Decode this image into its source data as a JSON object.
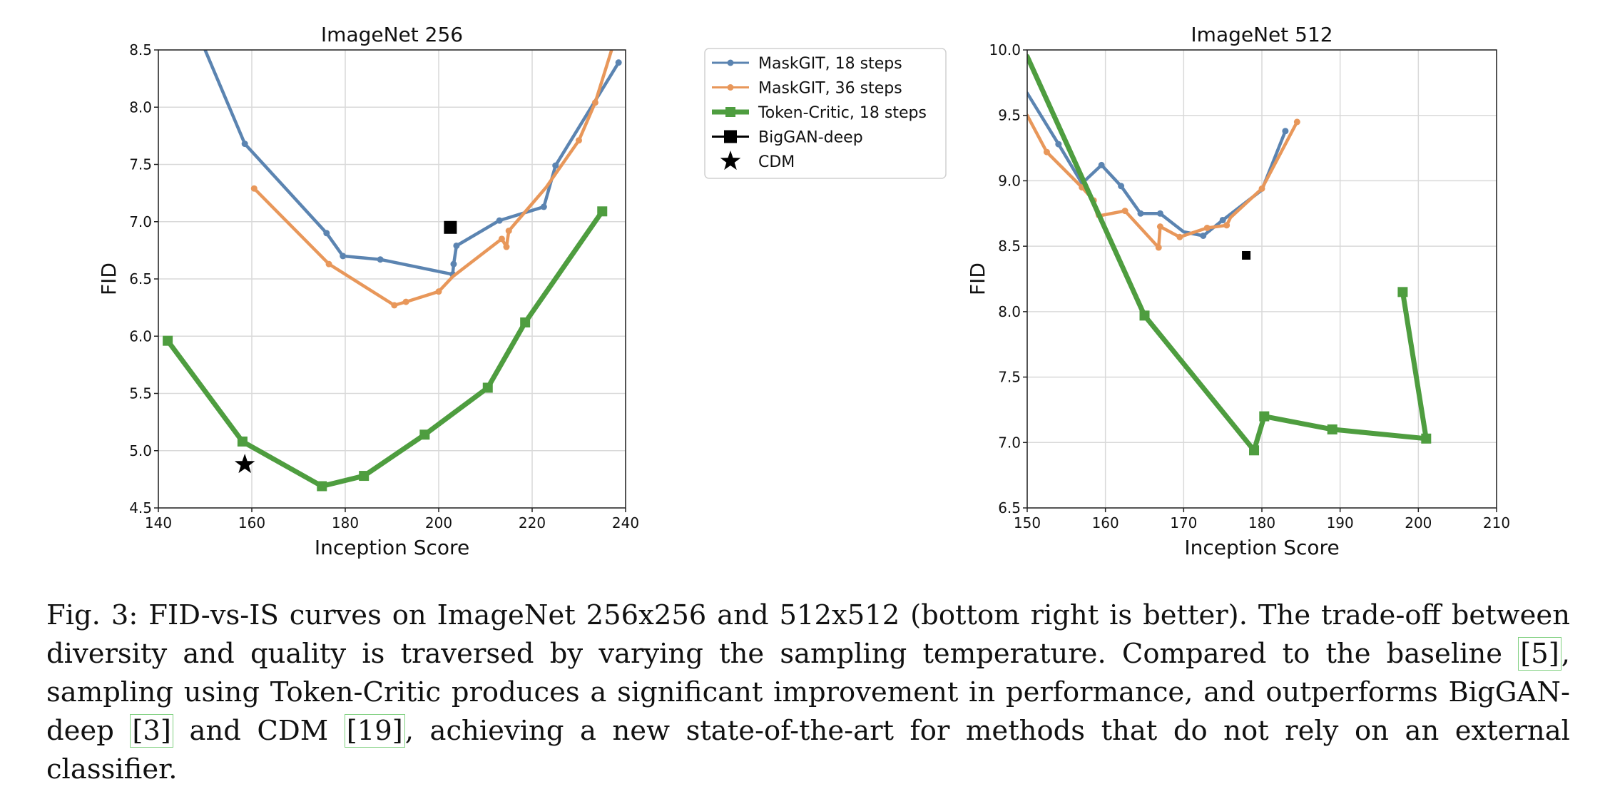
{
  "chart_data": [
    {
      "type": "line",
      "title": "ImageNet 256",
      "xlabel": "Inception Score",
      "ylabel": "FID",
      "xlim": [
        140,
        240
      ],
      "ylim": [
        4.5,
        8.5
      ],
      "xticks": [
        "140",
        "160",
        "180",
        "200",
        "220",
        "240"
      ],
      "yticks": [
        "4.5",
        "5.0",
        "5.5",
        "6.0",
        "6.5",
        "7.0",
        "7.5",
        "8.0",
        "8.5"
      ],
      "grid": true,
      "series": [
        {
          "name": "MaskGIT, 18 steps",
          "color": "#5b84b1",
          "marker": "circle",
          "points": [
            [
              150.0,
              8.5
            ],
            [
              158.5,
              7.68
            ],
            [
              176.0,
              6.9
            ],
            [
              179.5,
              6.7
            ],
            [
              187.5,
              6.67
            ],
            [
              203.0,
              6.54
            ],
            [
              203.2,
              6.63
            ],
            [
              203.8,
              6.79
            ],
            [
              213.0,
              7.01
            ],
            [
              222.5,
              7.13
            ],
            [
              225.0,
              7.49
            ],
            [
              238.5,
              8.39
            ]
          ],
          "marked": [
            false,
            true,
            true,
            true,
            true,
            true,
            true,
            true,
            true,
            true,
            true,
            true
          ]
        },
        {
          "name": "MaskGIT, 36 steps",
          "color": "#e8975a",
          "marker": "circle",
          "points": [
            [
              160.5,
              7.29
            ],
            [
              176.5,
              6.63
            ],
            [
              190.5,
              6.27
            ],
            [
              193.0,
              6.3
            ],
            [
              200.0,
              6.39
            ],
            [
              203.0,
              6.52
            ],
            [
              213.5,
              6.85
            ],
            [
              214.5,
              6.78
            ],
            [
              215.0,
              6.92
            ],
            [
              223.0,
              7.3
            ],
            [
              230.0,
              7.71
            ],
            [
              233.5,
              8.04
            ],
            [
              237.0,
              8.5
            ]
          ],
          "marked": [
            true,
            true,
            true,
            true,
            true,
            false,
            true,
            true,
            true,
            false,
            true,
            true,
            false
          ]
        },
        {
          "name": "Token-Critic, 18 steps",
          "color": "#4e9d3f",
          "marker": "square",
          "points": [
            [
              142.0,
              5.96
            ],
            [
              158.0,
              5.08
            ],
            [
              175.0,
              4.69
            ],
            [
              184.0,
              4.78
            ],
            [
              197.0,
              5.14
            ],
            [
              210.5,
              5.55
            ],
            [
              218.5,
              6.12
            ],
            [
              235.0,
              7.09
            ]
          ],
          "marked": [
            true,
            true,
            true,
            true,
            true,
            true,
            true,
            true
          ]
        }
      ],
      "extra_points": [
        {
          "name": "BigGAN-deep",
          "marker": "square",
          "color": "#000000",
          "x": 202.5,
          "y": 6.95
        },
        {
          "name": "CDM",
          "marker": "star",
          "color": "#000000",
          "x": 158.5,
          "y": 4.88
        }
      ]
    },
    {
      "type": "line",
      "title": "ImageNet 512",
      "xlabel": "Inception Score",
      "ylabel": "FID",
      "xlim": [
        150,
        210
      ],
      "ylim": [
        6.5,
        10.0
      ],
      "xticks": [
        "150",
        "160",
        "170",
        "180",
        "190",
        "200",
        "210"
      ],
      "yticks": [
        "6.5",
        "7.0",
        "7.5",
        "8.0",
        "8.5",
        "9.0",
        "9.5",
        "10.0"
      ],
      "grid": true,
      "series": [
        {
          "name": "MaskGIT, 18 steps",
          "color": "#5b84b1",
          "marker": "circle",
          "points": [
            [
              150.0,
              9.67
            ],
            [
              154.0,
              9.28
            ],
            [
              157.0,
              8.98
            ],
            [
              159.5,
              9.12
            ],
            [
              162.0,
              8.96
            ],
            [
              164.5,
              8.75
            ],
            [
              167.0,
              8.75
            ],
            [
              170.0,
              8.61
            ],
            [
              172.5,
              8.58
            ],
            [
              175.0,
              8.7
            ],
            [
              180.0,
              8.93
            ],
            [
              183.0,
              9.38
            ]
          ],
          "marked": [
            false,
            true,
            false,
            true,
            true,
            true,
            true,
            false,
            true,
            true,
            false,
            true
          ]
        },
        {
          "name": "MaskGIT, 36 steps",
          "color": "#e8975a",
          "marker": "circle",
          "points": [
            [
              150.0,
              9.5
            ],
            [
              152.5,
              9.22
            ],
            [
              157.0,
              8.95
            ],
            [
              158.5,
              8.85
            ],
            [
              159.0,
              8.73
            ],
            [
              162.5,
              8.77
            ],
            [
              166.8,
              8.49
            ],
            [
              167.0,
              8.65
            ],
            [
              169.5,
              8.57
            ],
            [
              173.0,
              8.64
            ],
            [
              175.5,
              8.66
            ],
            [
              176.0,
              8.72
            ],
            [
              180.0,
              8.94
            ],
            [
              184.5,
              9.45
            ]
          ],
          "marked": [
            false,
            true,
            true,
            true,
            false,
            true,
            true,
            true,
            true,
            true,
            true,
            false,
            true,
            true
          ]
        },
        {
          "name": "Token-Critic, 18 steps",
          "color": "#4e9d3f",
          "marker": "square",
          "points": [
            [
              150.0,
              9.95
            ],
            [
              165.0,
              7.97
            ],
            [
              179.0,
              6.94
            ],
            [
              180.3,
              7.2
            ],
            [
              189.0,
              7.1
            ],
            [
              201.0,
              7.03
            ],
            [
              198.0,
              8.15
            ]
          ],
          "marked": [
            false,
            true,
            true,
            true,
            true,
            true,
            true
          ]
        }
      ],
      "extra_points": [
        {
          "name": "BigGAN-deep",
          "marker": "square",
          "color": "#000000",
          "x": 178.0,
          "y": 8.43
        }
      ]
    }
  ],
  "legend": {
    "placement": "between charts, top",
    "items": [
      {
        "label": "MaskGIT, 18 steps",
        "color": "#5b84b1",
        "marker": "circle",
        "line": true
      },
      {
        "label": "MaskGIT, 36 steps",
        "color": "#e8975a",
        "marker": "circle",
        "line": true
      },
      {
        "label": "Token-Critic, 18 steps",
        "color": "#4e9d3f",
        "marker": "square",
        "line": true
      },
      {
        "label": "BigGAN-deep",
        "color": "#000000",
        "marker": "square",
        "line": true
      },
      {
        "label": "CDM",
        "color": "#000000",
        "marker": "star",
        "line": false
      }
    ]
  },
  "caption": {
    "p1": "Fig. 3: FID-vs-IS curves on ImageNet 256x256 and 512x512 (bottom right is better). The trade-off between diversity and quality is traversed by varying the sampling temperature. Compared to the baseline ",
    "c1": "[5]",
    "p2": ", sampling using Token-Critic produces a significant improvement in performance, and outperforms BigGAN-deep ",
    "c2": "[3]",
    "p3": " and CDM ",
    "c3": "[19]",
    "p4": ", achieving a new state-of-the-art for methods that do not rely on an external classifier."
  }
}
